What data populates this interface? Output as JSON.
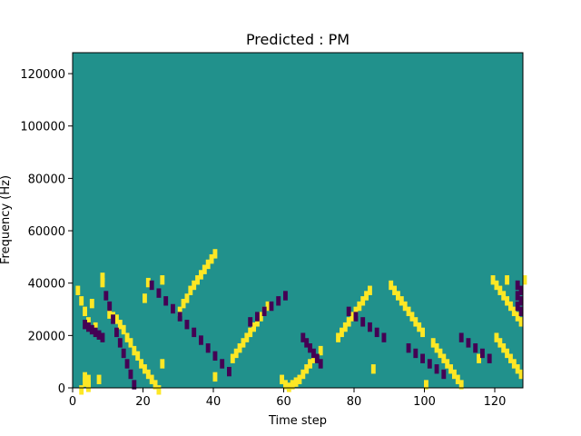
{
  "chart_data": {
    "type": "heatmap",
    "title": "Predicted : PM",
    "xlabel": "Time step",
    "ylabel": "Frequency (Hz)",
    "xlim": [
      0,
      128
    ],
    "ylim": [
      0,
      128000
    ],
    "xticks": [
      "0",
      "20",
      "40",
      "60",
      "80",
      "100",
      "120"
    ],
    "yticks": [
      "0",
      "20000",
      "40000",
      "60000",
      "80000",
      "100000",
      "120000"
    ],
    "colormap": "viridis",
    "levels": {
      "low": "#440154",
      "mid": "#21918c",
      "high": "#fde725"
    },
    "background_level": "mid",
    "cells": [
      [
        21,
        41,
        "h"
      ],
      [
        25,
        42,
        "h"
      ],
      [
        128,
        42,
        "h"
      ],
      [
        123,
        42,
        "h"
      ],
      [
        1,
        38,
        "h"
      ],
      [
        2,
        34,
        "h"
      ],
      [
        3,
        30,
        "h"
      ],
      [
        4,
        26,
        "h"
      ],
      [
        6,
        24,
        "h"
      ],
      [
        5,
        33,
        "h"
      ],
      [
        3,
        5,
        "h"
      ],
      [
        7,
        4,
        "h"
      ],
      [
        4,
        2,
        "h"
      ],
      [
        4,
        1,
        "h"
      ],
      [
        2,
        0,
        "h"
      ],
      [
        3,
        3,
        "h"
      ],
      [
        4,
        4,
        "h"
      ],
      [
        8,
        41,
        "h"
      ],
      [
        8,
        43,
        "h"
      ],
      [
        10,
        29,
        "h"
      ],
      [
        11,
        28,
        "h"
      ],
      [
        12,
        27,
        "h"
      ],
      [
        13,
        25,
        "h"
      ],
      [
        14,
        23,
        "h"
      ],
      [
        15,
        20,
        "h"
      ],
      [
        16,
        18,
        "h"
      ],
      [
        17,
        15,
        "h"
      ],
      [
        18,
        13,
        "h"
      ],
      [
        19,
        10,
        "h"
      ],
      [
        20,
        8,
        "h"
      ],
      [
        21,
        6,
        "h"
      ],
      [
        22,
        4,
        "h"
      ],
      [
        23,
        2,
        "h"
      ],
      [
        24,
        0,
        "h"
      ],
      [
        30,
        30,
        "h"
      ],
      [
        31,
        33,
        "h"
      ],
      [
        32,
        35,
        "h"
      ],
      [
        33,
        38,
        "h"
      ],
      [
        34,
        40,
        "h"
      ],
      [
        35,
        42,
        "h"
      ],
      [
        36,
        44,
        "h"
      ],
      [
        37,
        46,
        "h"
      ],
      [
        38,
        48,
        "h"
      ],
      [
        39,
        50,
        "h"
      ],
      [
        40,
        52,
        "h"
      ],
      [
        45,
        12,
        "h"
      ],
      [
        46,
        14,
        "h"
      ],
      [
        47,
        16,
        "h"
      ],
      [
        48,
        18,
        "h"
      ],
      [
        49,
        20,
        "h"
      ],
      [
        50,
        22,
        "h"
      ],
      [
        51,
        24,
        "h"
      ],
      [
        52,
        26,
        "h"
      ],
      [
        53,
        28,
        "h"
      ],
      [
        54,
        30,
        "h"
      ],
      [
        59,
        4,
        "h"
      ],
      [
        60,
        2,
        "h"
      ],
      [
        61,
        1,
        "h"
      ],
      [
        62,
        2,
        "h"
      ],
      [
        63,
        3,
        "h"
      ],
      [
        64,
        4,
        "h"
      ],
      [
        65,
        6,
        "h"
      ],
      [
        66,
        8,
        "h"
      ],
      [
        67,
        10,
        "h"
      ],
      [
        68,
        12,
        "h"
      ],
      [
        75,
        20,
        "h"
      ],
      [
        76,
        22,
        "h"
      ],
      [
        77,
        24,
        "h"
      ],
      [
        78,
        26,
        "h"
      ],
      [
        79,
        28,
        "h"
      ],
      [
        80,
        30,
        "h"
      ],
      [
        81,
        32,
        "h"
      ],
      [
        82,
        34,
        "h"
      ],
      [
        83,
        36,
        "h"
      ],
      [
        84,
        38,
        "h"
      ],
      [
        90,
        40,
        "h"
      ],
      [
        91,
        38,
        "h"
      ],
      [
        92,
        36,
        "h"
      ],
      [
        93,
        34,
        "h"
      ],
      [
        94,
        32,
        "h"
      ],
      [
        95,
        30,
        "h"
      ],
      [
        96,
        28,
        "h"
      ],
      [
        97,
        26,
        "h"
      ],
      [
        98,
        24,
        "h"
      ],
      [
        99,
        22,
        "h"
      ],
      [
        102,
        18,
        "h"
      ],
      [
        103,
        16,
        "h"
      ],
      [
        104,
        14,
        "h"
      ],
      [
        105,
        12,
        "h"
      ],
      [
        106,
        10,
        "h"
      ],
      [
        107,
        8,
        "h"
      ],
      [
        108,
        6,
        "h"
      ],
      [
        109,
        4,
        "h"
      ],
      [
        110,
        2,
        "h"
      ],
      [
        119,
        42,
        "h"
      ],
      [
        120,
        40,
        "h"
      ],
      [
        121,
        38,
        "h"
      ],
      [
        122,
        36,
        "h"
      ],
      [
        123,
        34,
        "h"
      ],
      [
        124,
        32,
        "h"
      ],
      [
        125,
        30,
        "h"
      ],
      [
        126,
        28,
        "h"
      ],
      [
        127,
        26,
        "h"
      ],
      [
        120,
        20,
        "h"
      ],
      [
        121,
        18,
        "h"
      ],
      [
        122,
        16,
        "h"
      ],
      [
        123,
        14,
        "h"
      ],
      [
        124,
        12,
        "h"
      ],
      [
        125,
        10,
        "h"
      ],
      [
        126,
        8,
        "h"
      ],
      [
        127,
        6,
        "h"
      ],
      [
        20,
        35,
        "h"
      ],
      [
        25,
        10,
        "h"
      ],
      [
        40,
        5,
        "h"
      ],
      [
        55,
        32,
        "h"
      ],
      [
        70,
        15,
        "h"
      ],
      [
        85,
        8,
        "h"
      ],
      [
        100,
        2,
        "h"
      ],
      [
        115,
        12,
        "h"
      ],
      [
        9,
        36,
        "l"
      ],
      [
        10,
        32,
        "l"
      ],
      [
        11,
        27,
        "l"
      ],
      [
        12,
        22,
        "l"
      ],
      [
        13,
        18,
        "l"
      ],
      [
        14,
        14,
        "l"
      ],
      [
        15,
        10,
        "l"
      ],
      [
        16,
        6,
        "l"
      ],
      [
        17,
        2,
        "l"
      ],
      [
        22,
        40,
        "l"
      ],
      [
        24,
        37,
        "l"
      ],
      [
        26,
        34,
        "l"
      ],
      [
        28,
        31,
        "l"
      ],
      [
        30,
        28,
        "l"
      ],
      [
        32,
        25,
        "l"
      ],
      [
        34,
        22,
        "l"
      ],
      [
        36,
        19,
        "l"
      ],
      [
        38,
        16,
        "l"
      ],
      [
        40,
        13,
        "l"
      ],
      [
        42,
        10,
        "l"
      ],
      [
        44,
        7,
        "l"
      ],
      [
        50,
        26,
        "l"
      ],
      [
        52,
        28,
        "l"
      ],
      [
        54,
        30,
        "l"
      ],
      [
        56,
        32,
        "l"
      ],
      [
        58,
        34,
        "l"
      ],
      [
        60,
        36,
        "l"
      ],
      [
        65,
        20,
        "l"
      ],
      [
        66,
        18,
        "l"
      ],
      [
        67,
        16,
        "l"
      ],
      [
        68,
        14,
        "l"
      ],
      [
        69,
        12,
        "l"
      ],
      [
        70,
        10,
        "l"
      ],
      [
        78,
        30,
        "l"
      ],
      [
        80,
        28,
        "l"
      ],
      [
        82,
        26,
        "l"
      ],
      [
        84,
        24,
        "l"
      ],
      [
        86,
        22,
        "l"
      ],
      [
        88,
        20,
        "l"
      ],
      [
        95,
        16,
        "l"
      ],
      [
        97,
        14,
        "l"
      ],
      [
        99,
        12,
        "l"
      ],
      [
        101,
        10,
        "l"
      ],
      [
        103,
        8,
        "l"
      ],
      [
        105,
        6,
        "l"
      ],
      [
        110,
        20,
        "l"
      ],
      [
        112,
        18,
        "l"
      ],
      [
        114,
        16,
        "l"
      ],
      [
        116,
        14,
        "l"
      ],
      [
        118,
        12,
        "l"
      ],
      [
        126,
        40,
        "l"
      ],
      [
        127,
        38,
        "l"
      ],
      [
        126,
        36,
        "l"
      ],
      [
        127,
        34,
        "l"
      ],
      [
        126,
        32,
        "l"
      ],
      [
        127,
        30,
        "l"
      ],
      [
        3,
        25,
        "l"
      ],
      [
        4,
        24,
        "l"
      ],
      [
        5,
        23,
        "l"
      ],
      [
        6,
        22,
        "l"
      ],
      [
        7,
        21,
        "l"
      ],
      [
        8,
        20,
        "l"
      ]
    ]
  }
}
